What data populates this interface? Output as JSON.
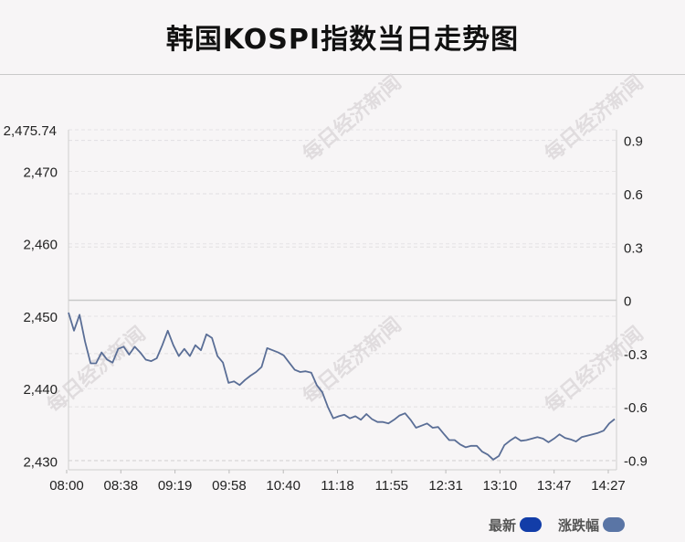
{
  "header": {
    "title": "韩国KOSPI指数当日走势图"
  },
  "watermark": "每日经济新闻",
  "legend": {
    "items": [
      {
        "label": "最新",
        "color": "#123da8"
      },
      {
        "label": "涨跌幅",
        "color": "#5a75a5"
      }
    ]
  },
  "chart_data": {
    "type": "line",
    "title": "韩国KOSPI指数当日走势图",
    "x_ticks": [
      "08:00",
      "08:38",
      "09:19",
      "09:58",
      "10:40",
      "11:18",
      "11:55",
      "12:31",
      "13:10",
      "13:47",
      "14:27"
    ],
    "y_left_ticks": [
      "2,430",
      "2,440",
      "2,450",
      "2,460",
      "2,470",
      "2,475.74"
    ],
    "y_left_tick_values": [
      2430,
      2440,
      2450,
      2460,
      2470,
      2475.74
    ],
    "y_left_range": [
      2428.8,
      2475.74
    ],
    "y_right_ticks": [
      "0.9",
      "0.6",
      "0.3",
      "0",
      "-0.3",
      "-0.6",
      "-0.9"
    ],
    "y_right_tick_values": [
      0.9,
      0.6,
      0.3,
      0,
      -0.3,
      -0.6,
      -0.9
    ],
    "baseline_value": 2452.2,
    "grid": true,
    "legend_position": "bottom-right",
    "series": [
      {
        "name": "最新",
        "color": "#5a6e96",
        "x_range": [
          0,
          100
        ],
        "values": [
          2450.5,
          2448,
          2450.2,
          2446.5,
          2443.5,
          2443.5,
          2445,
          2444,
          2443.6,
          2445.5,
          2445.8,
          2444.7,
          2445.8,
          2445,
          2444,
          2443.8,
          2444.2,
          2446,
          2448,
          2446,
          2444.5,
          2445.5,
          2444.5,
          2446,
          2445.3,
          2447.5,
          2447,
          2444.5,
          2443.6,
          2440.8,
          2441,
          2440.5,
          2441.2,
          2441.8,
          2442.3,
          2443,
          2445.6,
          2445.3,
          2445,
          2444.6,
          2443.6,
          2442.6,
          2442.3,
          2442.4,
          2442.2,
          2440.5,
          2439.5,
          2437.5,
          2435.9,
          2436.2,
          2436.4,
          2435.9,
          2436.2,
          2435.7,
          2436.5,
          2435.8,
          2435.4,
          2435.4,
          2435.2,
          2435.7,
          2436.3,
          2436.6,
          2435.7,
          2434.6,
          2434.9,
          2435.2,
          2434.6,
          2434.7,
          2433.8,
          2432.9,
          2432.9,
          2432.3,
          2431.9,
          2432.1,
          2432.1,
          2431.3,
          2430.9,
          2430.2,
          2430.7,
          2432.2,
          2432.8,
          2433.3,
          2432.8,
          2432.9,
          2433.1,
          2433.3,
          2433.1,
          2432.6,
          2433.1,
          2433.7,
          2433.2,
          2433,
          2432.7,
          2433.3,
          2433.5,
          2433.7,
          2433.9,
          2434.2,
          2435.2,
          2435.8
        ]
      }
    ]
  }
}
